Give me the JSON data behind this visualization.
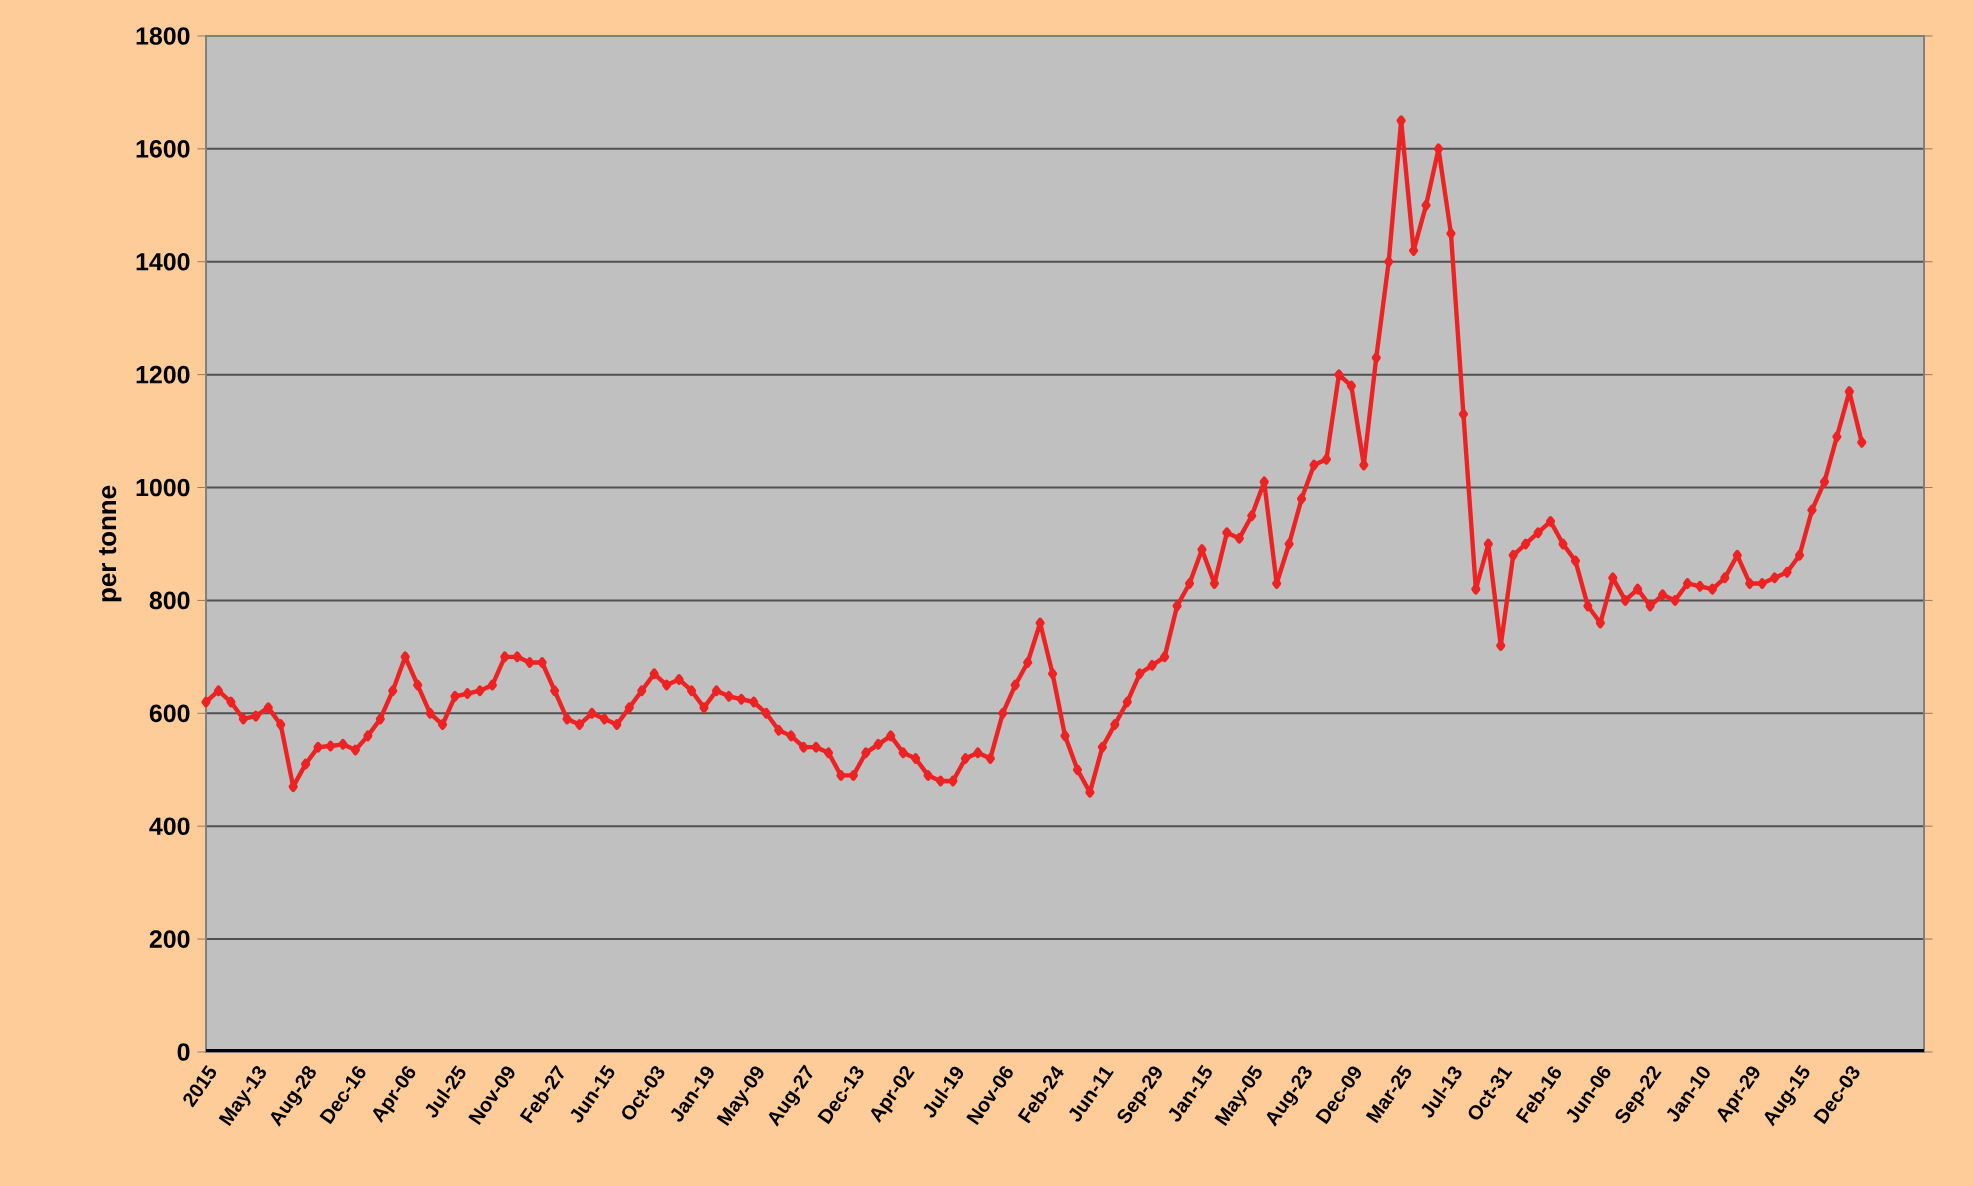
{
  "chart_data": {
    "type": "line",
    "ylabel": "per tonne",
    "categories": [
      "2015",
      null,
      null,
      null,
      "May-13",
      null,
      null,
      null,
      "Aug-28",
      null,
      null,
      null,
      "Dec-16",
      null,
      null,
      null,
      "Apr-06",
      null,
      null,
      null,
      "Jul-25",
      null,
      null,
      null,
      "Nov-09",
      null,
      null,
      null,
      "Feb-27",
      null,
      null,
      null,
      "Jun-15",
      null,
      null,
      null,
      "Oct-03",
      null,
      null,
      null,
      "Jan-19",
      null,
      null,
      null,
      "May-09",
      null,
      null,
      null,
      "Aug-27",
      null,
      null,
      null,
      "Dec-13",
      null,
      null,
      null,
      "Apr-02",
      null,
      null,
      null,
      "Jul-19",
      null,
      null,
      null,
      "Nov-06",
      null,
      null,
      null,
      "Feb-24",
      null,
      null,
      null,
      "Jun-11",
      null,
      null,
      null,
      "Sep-29",
      null,
      null,
      null,
      "Jan-15",
      null,
      null,
      null,
      "May-05",
      null,
      null,
      null,
      "Aug-23",
      null,
      null,
      null,
      "Dec-09",
      null,
      null,
      null,
      "Mar-25",
      null,
      null,
      null,
      "Jul-13",
      null,
      null,
      null,
      "Oct-31",
      null,
      null,
      null,
      "Feb-16",
      null,
      null,
      null,
      "Jun-06",
      null,
      null,
      null,
      "Sep-22",
      null,
      null,
      null,
      "Jan-10",
      null,
      null,
      null,
      "Apr-29",
      null,
      null,
      null,
      "Aug-15",
      null,
      null,
      null,
      "Dec-03",
      null,
      null,
      null,
      null,
      null,
      null
    ],
    "series": [
      {
        "color": "#ee2222",
        "values": [
          620,
          640,
          620,
          590,
          595,
          610,
          580,
          470,
          510,
          540,
          542,
          545,
          535,
          560,
          590,
          640,
          700,
          650,
          600,
          580,
          630,
          635,
          640,
          650,
          700,
          700,
          690,
          690,
          640,
          590,
          580,
          600,
          590,
          580,
          610,
          640,
          670,
          650,
          660,
          640,
          610,
          640,
          630,
          625,
          620,
          600,
          570,
          560,
          540,
          540,
          530,
          490,
          490,
          530,
          545,
          560,
          530,
          520,
          490,
          480,
          480,
          520,
          530,
          520,
          600,
          650,
          690,
          760,
          670,
          560,
          500,
          460,
          540,
          580,
          620,
          670,
          685,
          700,
          790,
          830,
          890,
          830,
          920,
          910,
          950,
          1010,
          830,
          900,
          980,
          1040,
          1050,
          1200,
          1180,
          1040,
          1230,
          1400,
          1650,
          1420,
          1500,
          1600,
          1450,
          1130,
          820,
          900,
          720,
          880,
          900,
          920,
          940,
          900,
          870,
          790,
          760,
          840,
          800,
          820,
          790,
          810,
          800,
          830,
          825,
          820,
          840,
          880,
          830,
          830,
          840,
          850,
          880,
          960,
          1010,
          1090,
          1170,
          1080,
          null,
          null,
          null,
          null,
          null
        ]
      }
    ],
    "ylim": [
      0,
      1800
    ],
    "yticks": [
      0,
      200,
      400,
      600,
      800,
      1000,
      1200,
      1400,
      1600,
      1800
    ],
    "grid": "y",
    "marker": "diamond",
    "line_style": "solid"
  }
}
